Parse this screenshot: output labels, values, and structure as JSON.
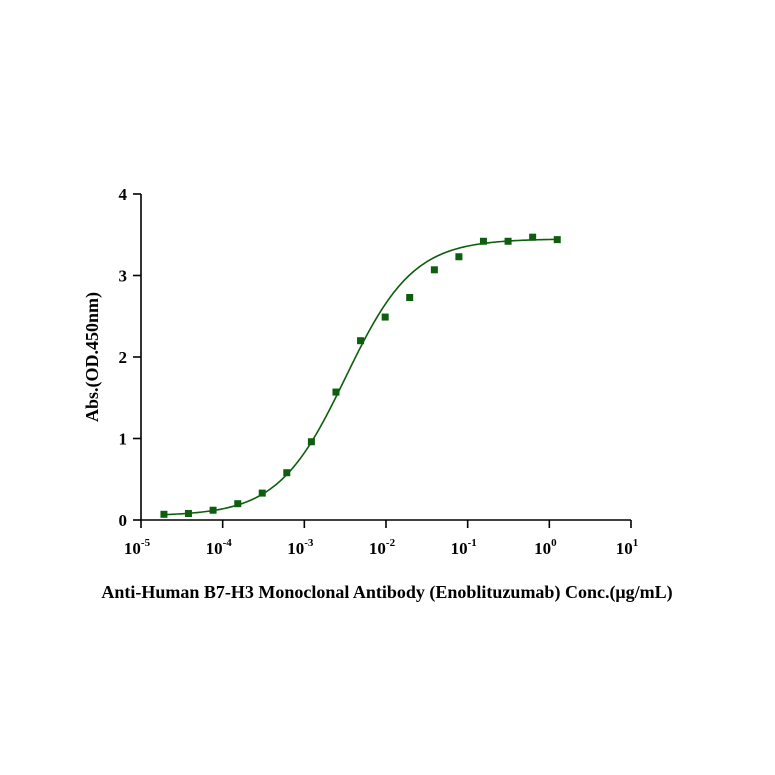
{
  "chart_data": {
    "type": "scatter",
    "xlabel": "Anti-Human B7-H3 Monoclonal Antibody (Enoblituzumab) Conc.(μg/mL)",
    "ylabel": "Abs.(OD.450nm)",
    "x_scale": "log10",
    "xlim": [
      1e-05,
      10
    ],
    "ylim": [
      0,
      4
    ],
    "x_ticks": [
      {
        "base": "10",
        "exp": "-5",
        "value": 1e-05
      },
      {
        "base": "10",
        "exp": "-4",
        "value": 0.0001
      },
      {
        "base": "10",
        "exp": "-3",
        "value": 0.001
      },
      {
        "base": "10",
        "exp": "-2",
        "value": 0.01
      },
      {
        "base": "10",
        "exp": "-1",
        "value": 0.1
      },
      {
        "base": "10",
        "exp": "0",
        "value": 1
      },
      {
        "base": "10",
        "exp": "1",
        "value": 10
      }
    ],
    "y_ticks": [
      "0",
      "1",
      "2",
      "3",
      "4"
    ],
    "grid": false,
    "legend": "none",
    "color": "#0d5e0d",
    "series": [
      {
        "x": [
          1.91e-05,
          3.81e-05,
          7.63e-05,
          0.000153,
          0.000305,
          0.00061,
          0.00122,
          0.00244,
          0.00488,
          0.00977,
          0.0195,
          0.0391,
          0.0781,
          0.156,
          0.3125,
          0.625,
          1.25
        ],
        "y": [
          0.07,
          0.08,
          0.12,
          0.2,
          0.33,
          0.58,
          0.96,
          1.57,
          2.2,
          2.49,
          2.73,
          3.07,
          3.23,
          3.42,
          3.42,
          3.47,
          3.44
        ]
      }
    ],
    "fit": {
      "model": "4PL",
      "bottom": 0.05,
      "top": 3.45,
      "ec50": 0.0032,
      "hill": 1.05,
      "x_range": [
        1.91e-05,
        1.25
      ]
    }
  }
}
